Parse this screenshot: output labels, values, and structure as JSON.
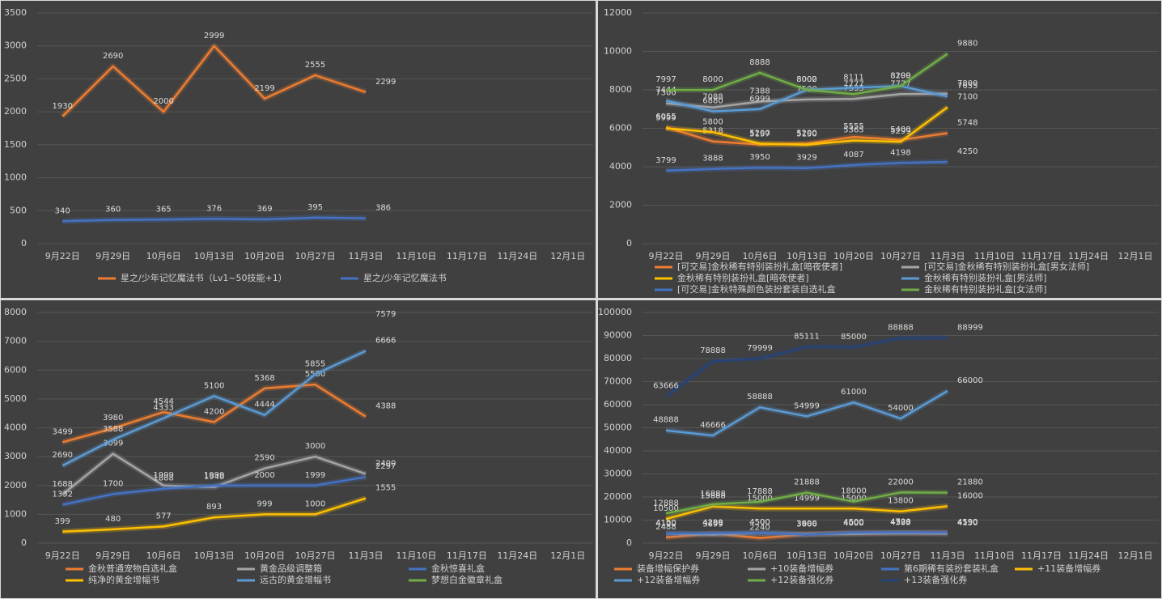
{
  "chart_data": [
    {
      "type": "line",
      "data_labels": true,
      "grid": true,
      "legend": "bottom",
      "categories": [
        "9月22日",
        "9月29日",
        "10月6日",
        "10月13日",
        "10月20日",
        "10月27日",
        "11月3日",
        "11月10日",
        "11月17日",
        "11月24日",
        "12月1日"
      ],
      "ylim": [
        0,
        3500
      ],
      "yticks": [
        0,
        500,
        1000,
        1500,
        2000,
        2500,
        3000,
        3500
      ],
      "series": [
        {
          "name": "星之/少年记忆魔法书（Lv1~50技能+1）",
          "color": "#ed7d31",
          "values": [
            1930,
            2690,
            2000,
            2999,
            2199,
            2555,
            2299,
            null,
            null,
            null,
            null
          ]
        },
        {
          "name": "星之/少年记忆魔法书",
          "color": "#4472c4",
          "values": [
            340,
            360,
            365,
            376,
            369,
            395,
            386,
            null,
            null,
            null,
            null
          ]
        }
      ]
    },
    {
      "type": "line",
      "data_labels": true,
      "grid": true,
      "legend": "bottom",
      "categories": [
        "9月22日",
        "9月29日",
        "10月6日",
        "10月13日",
        "10月20日",
        "10月27日",
        "11月3日",
        "11月10日",
        "11月17日",
        "11月24日",
        "12月1日"
      ],
      "ylim": [
        0,
        12000
      ],
      "yticks": [
        0,
        2000,
        4000,
        6000,
        8000,
        10000,
        12000
      ],
      "series": [
        {
          "name": "[可交易]金秋稀有特别装扮礼盒[暗夜使者]",
          "color": "#ed7d31",
          "values": [
            6055,
            5318,
            5157,
            5200,
            5555,
            5400,
            5748,
            null,
            null,
            null,
            null
          ]
        },
        {
          "name": "[可交易]金秋稀有特别装扮礼盒[男女法师]",
          "color": "#a5a5a5",
          "values": [
            7300,
            7088,
            7388,
            7500,
            7533,
            7777,
            7800,
            null,
            null,
            null,
            null
          ]
        },
        {
          "name": "金秋稀有特别装扮礼盒[暗夜使者]",
          "color": "#ffc000",
          "values": [
            5999,
            5800,
            5200,
            5150,
            5365,
            5299,
            7100,
            null,
            null,
            null,
            null
          ]
        },
        {
          "name": "金秋稀有特别装扮礼盒[男法师]",
          "color": "#5b9bd5",
          "values": [
            7444,
            6880,
            6999,
            8000,
            8111,
            8199,
            7655,
            null,
            null,
            null,
            null
          ]
        },
        {
          "name": "[可交易]金秋特殊颜色装扮套装自选礼盒",
          "color": "#4472c4",
          "values": [
            3799,
            3888,
            3950,
            3929,
            4087,
            4198,
            4250,
            null,
            null,
            null,
            null
          ]
        },
        {
          "name": "金秋稀有特别装扮礼盒[女法师]",
          "color": "#70ad47",
          "values": [
            7997,
            8000,
            8888,
            8002,
            7777,
            8200,
            9880,
            null,
            null,
            null,
            null
          ]
        }
      ]
    },
    {
      "type": "line",
      "data_labels": true,
      "grid": true,
      "legend": "bottom",
      "categories": [
        "9月22日",
        "9月29日",
        "10月6日",
        "10月13日",
        "10月20日",
        "10月27日",
        "11月3日",
        "11月10日",
        "11月17日",
        "11月24日",
        "12月1日"
      ],
      "ylim": [
        0,
        8000
      ],
      "yticks": [
        0,
        1000,
        2000,
        3000,
        4000,
        5000,
        6000,
        7000,
        8000
      ],
      "series": [
        {
          "name": "金秋普通宠物自选礼盒",
          "color": "#ed7d31",
          "values": [
            3499,
            3980,
            4544,
            4200,
            5368,
            5500,
            4388,
            null,
            null,
            null,
            null
          ]
        },
        {
          "name": "黄金品级调整箱",
          "color": "#a5a5a5",
          "values": [
            1688,
            3099,
            1999,
            1940,
            2590,
            3000,
            2400,
            null,
            null,
            null,
            null
          ]
        },
        {
          "name": "金秋惊喜礼盒",
          "color": "#4472c4",
          "values": [
            1332,
            1700,
            1888,
            1999,
            2000,
            1999,
            2297,
            null,
            null,
            null,
            null
          ]
        },
        {
          "name": "纯净的黄金增幅书",
          "color": "#ffc000",
          "values": [
            399,
            480,
            577,
            893,
            999,
            1000,
            1555,
            null,
            null,
            null,
            null
          ]
        },
        {
          "name": "远古的黄金增幅书",
          "color": "#5b9bd5",
          "values": [
            2690,
            3588,
            4333,
            5100,
            4444,
            5855,
            6666,
            null,
            null,
            null,
            null
          ]
        },
        {
          "name": "梦想白金徽章礼盒",
          "color": "#70ad47",
          "values": [
            null,
            null,
            null,
            null,
            null,
            null,
            7579,
            null,
            null,
            null,
            null
          ]
        }
      ]
    },
    {
      "type": "line",
      "data_labels": true,
      "grid": true,
      "legend": "bottom",
      "categories": [
        "9月22日",
        "9月29日",
        "10月6日",
        "10月13日",
        "10月20日",
        "10月27日",
        "11月3日",
        "11月10日",
        "11月17日",
        "11月24日",
        "12月1日"
      ],
      "ylim": [
        0,
        100000
      ],
      "yticks": [
        0,
        10000,
        20000,
        30000,
        40000,
        50000,
        60000,
        70000,
        80000,
        90000,
        100000
      ],
      "series": [
        {
          "name": "装备增幅保护券",
          "color": "#ed7d31",
          "values": [
            2488,
            4200,
            2240,
            3800,
            4500,
            4528,
            4590,
            null,
            null,
            null,
            null
          ]
        },
        {
          "name": "+10装备增幅券",
          "color": "#a5a5a5",
          "values": [
            4100,
            3699,
            4500,
            3900,
            4000,
            4333,
            4150,
            null,
            null,
            null,
            null
          ]
        },
        {
          "name": "第6期稀有装扮套装礼盒",
          "color": "#4472c4",
          "values": [
            4150,
            4299,
            4500,
            3666,
            4600,
            4700,
            4590,
            null,
            null,
            null,
            null
          ]
        },
        {
          "name": "+11装备增幅券",
          "color": "#ffc000",
          "values": [
            10500,
            15888,
            15000,
            14999,
            15000,
            13800,
            16000,
            null,
            null,
            null,
            null
          ]
        },
        {
          "name": "+12装备增幅券",
          "color": "#5b9bd5",
          "values": [
            48888,
            46666,
            58888,
            54999,
            61000,
            54000,
            66000,
            null,
            null,
            null,
            null
          ]
        },
        {
          "name": "+12装备强化券",
          "color": "#70ad47",
          "values": [
            12888,
            16888,
            17888,
            21888,
            18000,
            22000,
            21880,
            null,
            null,
            null,
            null
          ]
        },
        {
          "name": "+13装备强化券",
          "color": "#264478",
          "values": [
            63666,
            78888,
            79999,
            85111,
            85000,
            88888,
            88999,
            null,
            null,
            null,
            null
          ]
        }
      ]
    }
  ]
}
